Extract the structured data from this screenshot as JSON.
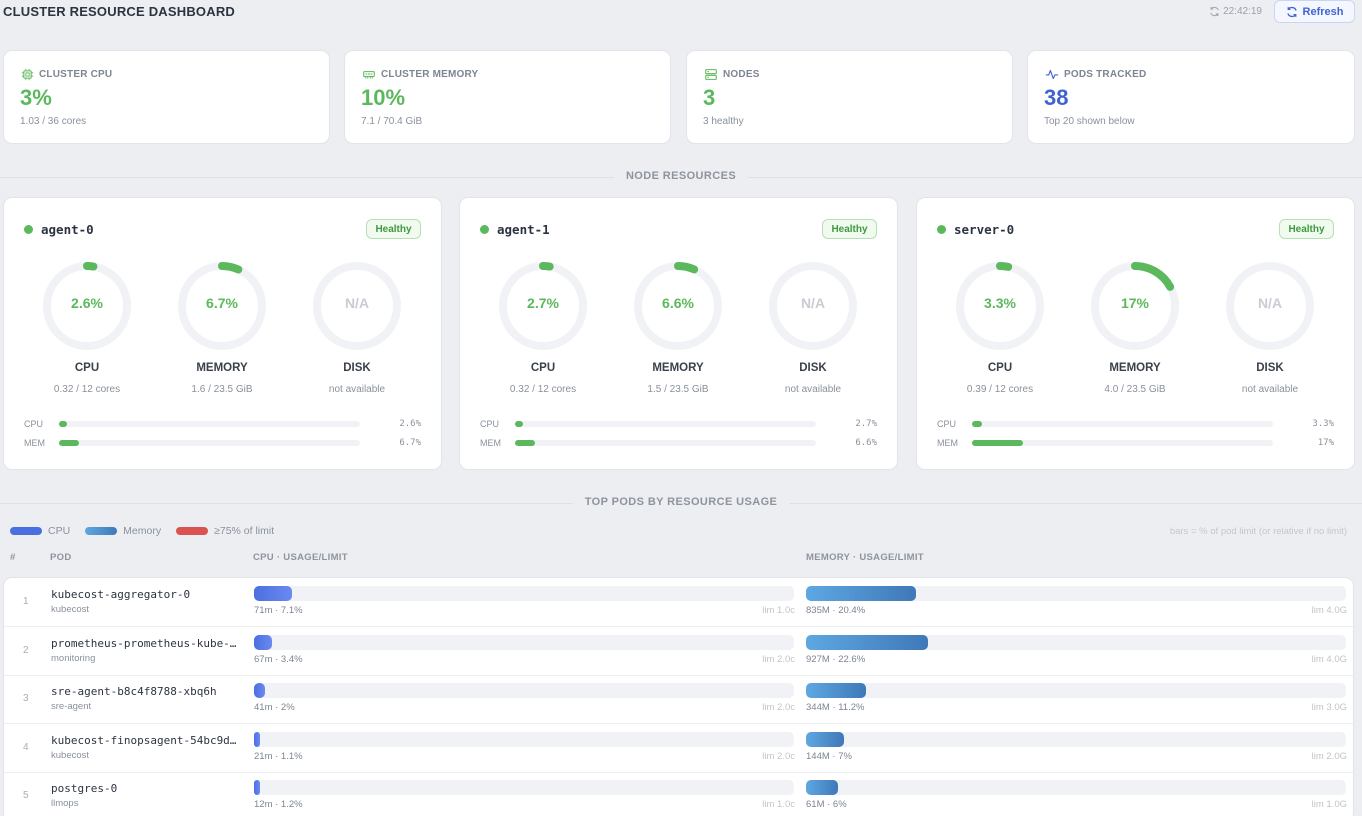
{
  "header": {
    "title": "CLUSTER RESOURCE DASHBOARD",
    "time": "22:42:19",
    "refresh_label": "Refresh"
  },
  "stats": [
    {
      "label": "CLUSTER CPU",
      "icon": "chip-icon",
      "value": "3%",
      "sub": "1.03 / 36 cores",
      "color": "#5cb85c"
    },
    {
      "label": "CLUSTER MEMORY",
      "icon": "memory-icon",
      "value": "10%",
      "sub": "7.1 / 70.4 GiB",
      "color": "#5cb85c"
    },
    {
      "label": "NODES",
      "icon": "server-icon",
      "value": "3",
      "sub": "3 healthy",
      "color": "#5cb85c"
    },
    {
      "label": "PODS TRACKED",
      "icon": "activity-icon",
      "value": "38",
      "sub": "Top 20 shown below",
      "color": "#3f63d2"
    }
  ],
  "sections": {
    "nodes_title": "NODE RESOURCES",
    "pods_title": "TOP PODS BY RESOURCE USAGE"
  },
  "nodes": [
    {
      "name": "agent-0",
      "status": "Healthy",
      "cpu": {
        "display": "2.6%",
        "label": "CPU",
        "sub": "0.32 / 12 cores",
        "pct": 2.6
      },
      "mem": {
        "display": "6.7%",
        "label": "MEMORY",
        "sub": "1.6 / 23.5 GiB",
        "pct": 6.7
      },
      "disk": {
        "display": "N/A",
        "label": "DISK",
        "sub": "not available"
      },
      "mini": {
        "cpu_label": "CPU",
        "mem_label": "MEM",
        "cpu_val": "2.6%",
        "mem_val": "6.7%"
      }
    },
    {
      "name": "agent-1",
      "status": "Healthy",
      "cpu": {
        "display": "2.7%",
        "label": "CPU",
        "sub": "0.32 / 12 cores",
        "pct": 2.7
      },
      "mem": {
        "display": "6.6%",
        "label": "MEMORY",
        "sub": "1.5 / 23.5 GiB",
        "pct": 6.6
      },
      "disk": {
        "display": "N/A",
        "label": "DISK",
        "sub": "not available"
      },
      "mini": {
        "cpu_label": "CPU",
        "mem_label": "MEM",
        "cpu_val": "2.7%",
        "mem_val": "6.6%"
      }
    },
    {
      "name": "server-0",
      "status": "Healthy",
      "cpu": {
        "display": "3.3%",
        "label": "CPU",
        "sub": "0.39 / 12 cores",
        "pct": 3.3
      },
      "mem": {
        "display": "17%",
        "label": "MEMORY",
        "sub": "4.0 / 23.5 GiB",
        "pct": 17
      },
      "disk": {
        "display": "N/A",
        "label": "DISK",
        "sub": "not available"
      },
      "mini": {
        "cpu_label": "CPU",
        "mem_label": "MEM",
        "cpu_val": "3.3%",
        "mem_val": "17%"
      }
    }
  ],
  "legend": {
    "cpu": "CPU",
    "memory": "Memory",
    "limit": "≥75% of limit",
    "note": "bars = % of pod limit (or relative if no limit)",
    "colors": {
      "cpu": "#4c6fe0",
      "memory": "#5a9fd8",
      "limit": "#d9534f"
    }
  },
  "table": {
    "headers": {
      "idx": "#",
      "pod": "POD",
      "cpu": "CPU · USAGE/LIMIT",
      "mem": "MEMORY · USAGE/LIMIT"
    },
    "rows": [
      {
        "idx": "1",
        "name": "kubecost-aggregator-0",
        "ns": "kubecost",
        "cpu_info": "71m · 7.1%",
        "cpu_lim": "lim 1.0c",
        "cpu_pct": 7.1,
        "mem_info": "835M · 20.4%",
        "mem_lim": "lim 4.0G",
        "mem_pct": 20.4
      },
      {
        "idx": "2",
        "name": "prometheus-prometheus-kube-…",
        "ns": "monitoring",
        "cpu_info": "67m · 3.4%",
        "cpu_lim": "lim 2.0c",
        "cpu_pct": 3.4,
        "mem_info": "927M · 22.6%",
        "mem_lim": "lim 4.0G",
        "mem_pct": 22.6
      },
      {
        "idx": "3",
        "name": "sre-agent-b8c4f8788-xbq6h",
        "ns": "sre-agent",
        "cpu_info": "41m · 2%",
        "cpu_lim": "lim 2.0c",
        "cpu_pct": 2,
        "mem_info": "344M · 11.2%",
        "mem_lim": "lim 3.0G",
        "mem_pct": 11.2
      },
      {
        "idx": "4",
        "name": "kubecost-finopsagent-54bc9d…",
        "ns": "kubecost",
        "cpu_info": "21m · 1.1%",
        "cpu_lim": "lim 2.0c",
        "cpu_pct": 1.1,
        "mem_info": "144M · 7%",
        "mem_lim": "lim 2.0G",
        "mem_pct": 7
      },
      {
        "idx": "5",
        "name": "postgres-0",
        "ns": "llmops",
        "cpu_info": "12m · 1.2%",
        "cpu_lim": "lim 1.0c",
        "cpu_pct": 1.2,
        "mem_info": "61M · 6%",
        "mem_lim": "lim 1.0G",
        "mem_pct": 6
      }
    ]
  }
}
